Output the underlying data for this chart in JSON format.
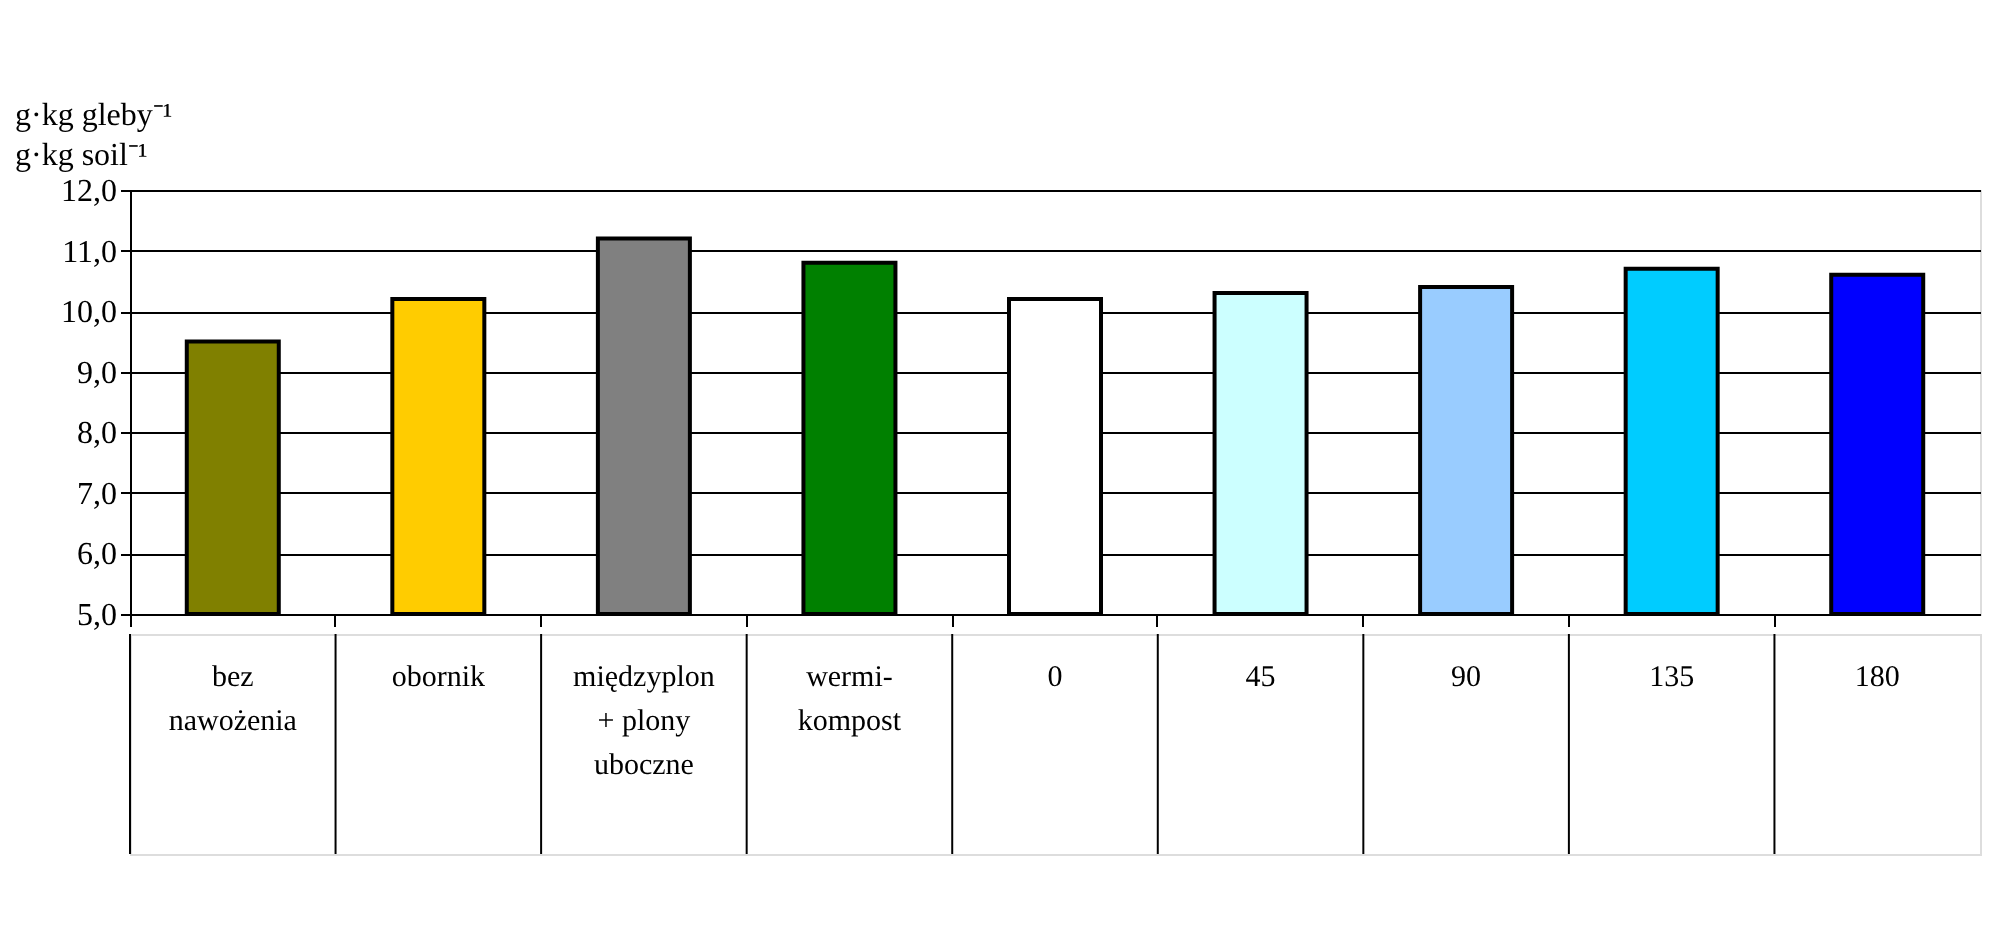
{
  "chart_data": {
    "type": "bar",
    "ylabel": "g·kg gleby⁻¹\ng·kg soil⁻¹",
    "categories": [
      "bez\nnawożenia",
      "obornik",
      "międzyplon\n+ plony\nuboczne",
      "wermi-\nkompost",
      "0",
      "45",
      "90",
      "135",
      "180"
    ],
    "values": [
      9.5,
      10.2,
      11.2,
      10.8,
      10.2,
      10.3,
      10.4,
      10.7,
      10.6
    ],
    "colors": [
      "#808000",
      "#ffcc00",
      "#808080",
      "#008000",
      "#ffffff",
      "#ccffff",
      "#99ccff",
      "#00ccff",
      "#0000ff"
    ],
    "ylim": [
      5,
      12
    ],
    "yticks": [
      {
        "value": 5,
        "label": "5,0"
      },
      {
        "value": 6,
        "label": "6,0"
      },
      {
        "value": 7,
        "label": "7,0"
      },
      {
        "value": 8,
        "label": "8,0"
      },
      {
        "value": 9,
        "label": "9,0"
      },
      {
        "value": 10,
        "label": "10,0"
      },
      {
        "value": 11,
        "label": "11,0"
      },
      {
        "value": 12,
        "label": "12,0"
      }
    ],
    "grid": "y"
  }
}
